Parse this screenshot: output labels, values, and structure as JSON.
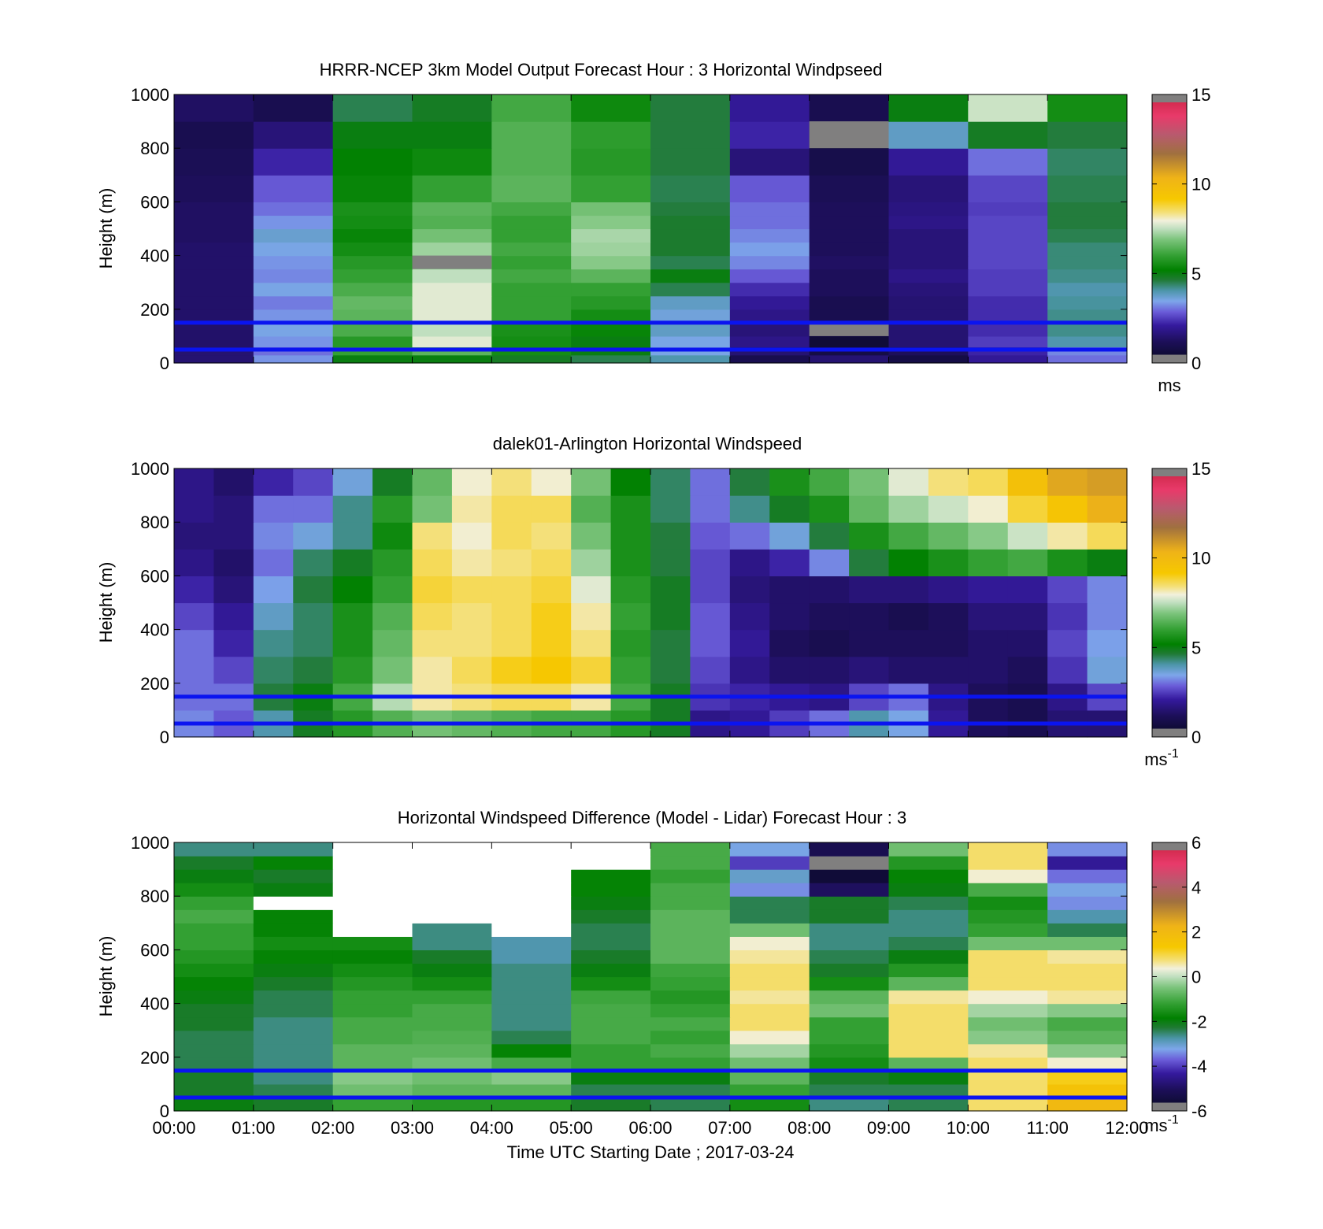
{
  "figure": {
    "x_tick_labels": [
      "00:00",
      "01:00",
      "02:00",
      "03:00",
      "04:00",
      "05:00",
      "06:00",
      "07:00",
      "08:00",
      "09:00",
      "10:00",
      "11:00",
      "12:00"
    ],
    "x_label": "Time UTC  Starting Date ; 2017-03-24",
    "reference_line_color": "#0a14f0",
    "reference_lines_m": [
      150,
      50
    ]
  },
  "chart_data": [
    {
      "type": "heatmap",
      "title": "HRRR-NCEP 3km Model Output   Forecast Hour : 3 Horizontal Windpseed",
      "ylabel": "Height (m)",
      "ylim": [
        0,
        1000
      ],
      "y_ticks": [
        0,
        200,
        400,
        600,
        800,
        1000
      ],
      "x_range_hours": [
        0,
        12
      ],
      "colorbar": {
        "ticks": [
          0,
          5,
          10,
          15
        ],
        "unit": "ms",
        "unit_sup": "",
        "range": [
          0,
          15
        ]
      },
      "columns_hours": [
        0,
        1,
        2,
        3,
        4,
        5,
        6,
        7,
        8,
        9,
        10,
        11
      ],
      "rows_bottom_to_top_m": [
        0,
        30,
        60,
        100,
        150,
        200,
        250,
        300,
        350,
        400,
        450,
        500,
        550,
        600,
        700,
        800,
        900,
        1000
      ],
      "values": [
        [
          1.5,
          3.3,
          5.0,
          5.0,
          4.8,
          4.5,
          4.0,
          1.0,
          1.5,
          0.8,
          2.0,
          3.0
        ],
        [
          1.5,
          3.0,
          6.0,
          6.5,
          5.5,
          5.0,
          3.5,
          1.5,
          0.8,
          1.2,
          2.2,
          3.2
        ],
        [
          1.4,
          3.3,
          5.8,
          7.8,
          5.5,
          5.0,
          3.5,
          1.8,
          0.5,
          1.5,
          2.5,
          4.0
        ],
        [
          1.4,
          3.5,
          6.3,
          7.5,
          5.6,
          5.3,
          3.8,
          1.6,
          0.8,
          1.5,
          2.3,
          4.2
        ],
        [
          1.4,
          3.3,
          6.5,
          7.8,
          6.0,
          5.5,
          3.6,
          1.8,
          1.0,
          1.5,
          2.3,
          4.2
        ],
        [
          1.4,
          3.1,
          6.6,
          7.8,
          6.0,
          5.8,
          3.8,
          2.0,
          1.0,
          1.5,
          2.3,
          4.1
        ],
        [
          1.4,
          3.5,
          6.3,
          7.8,
          6.0,
          6.0,
          4.5,
          2.3,
          1.2,
          1.6,
          2.5,
          4.0
        ],
        [
          1.4,
          3.2,
          6.0,
          7.5,
          6.2,
          6.5,
          5.0,
          2.8,
          1.2,
          1.8,
          2.5,
          4.2
        ],
        [
          1.4,
          3.3,
          5.8,
          7.0,
          6.0,
          7.0,
          4.5,
          3.2,
          1.3,
          1.6,
          2.6,
          4.3
        ],
        [
          1.4,
          3.5,
          5.5,
          7.2,
          6.2,
          7.2,
          4.7,
          3.4,
          1.2,
          1.6,
          2.6,
          4.3
        ],
        [
          1.3,
          3.7,
          5.3,
          6.8,
          6.0,
          7.3,
          4.7,
          3.2,
          1.2,
          1.6,
          2.6,
          4.5
        ],
        [
          1.3,
          3.3,
          5.5,
          6.4,
          6.0,
          7.0,
          4.7,
          3.0,
          1.2,
          1.8,
          2.6,
          4.6
        ],
        [
          1.3,
          3.0,
          5.6,
          6.5,
          6.2,
          6.8,
          4.6,
          3.0,
          1.2,
          1.7,
          2.5,
          4.6
        ],
        [
          1.2,
          2.8,
          5.3,
          6.0,
          6.5,
          6.0,
          4.5,
          2.8,
          1.1,
          1.6,
          2.6,
          4.5
        ],
        [
          1.1,
          2.2,
          5.2,
          5.4,
          6.4,
          5.8,
          4.6,
          1.6,
          0.9,
          2.0,
          3.0,
          4.4
        ],
        [
          1.0,
          1.6,
          5.0,
          5.0,
          6.4,
          5.9,
          4.6,
          2.2,
          0.6,
          3.8,
          4.8,
          4.6
        ],
        [
          1.3,
          1.0,
          4.5,
          4.8,
          6.2,
          5.4,
          4.6,
          2.0,
          1.0,
          5.0,
          7.6,
          5.5
        ]
      ],
      "gray_cells": [
        [
          8,
          3
        ],
        [
          8,
          15
        ],
        [
          3,
          8
        ]
      ]
    },
    {
      "type": "heatmap",
      "title": "dalek01-Arlington  Horizontal Windspeed",
      "ylabel": "Height (m)",
      "ylim": [
        0,
        1000
      ],
      "y_ticks": [
        0,
        200,
        400,
        600,
        800,
        1000
      ],
      "x_range_hours": [
        0,
        12
      ],
      "colorbar": {
        "ticks": [
          0,
          5,
          10,
          15
        ],
        "unit": "ms",
        "unit_sup": "-1",
        "range": [
          0,
          15
        ]
      },
      "columns_hours": [
        0,
        0.5,
        1,
        1.5,
        2,
        2.5,
        3,
        3.5,
        4,
        4.5,
        5,
        5.5,
        6,
        6.5,
        7,
        7.5,
        8,
        8.5,
        9,
        9.5,
        10,
        10.5,
        11,
        11.5
      ],
      "rows_bottom_to_top_m": [
        0,
        100,
        200,
        300,
        400,
        500,
        600,
        700,
        800,
        900,
        1000
      ],
      "values": [
        [
          3.2,
          2.8,
          4.0,
          4.8,
          5.8,
          6.4,
          6.8,
          6.6,
          6.4,
          6.2,
          6.2,
          5.8,
          4.8,
          1.8,
          2.0,
          2.5,
          3.0,
          4.0,
          3.5,
          2.0,
          1.2,
          1.0,
          1.5,
          1.5
        ],
        [
          3.0,
          3.0,
          4.6,
          5.0,
          6.2,
          7.4,
          8.2,
          8.4,
          8.6,
          8.6,
          8.2,
          6.2,
          4.8,
          2.4,
          2.2,
          2.0,
          1.8,
          2.6,
          3.0,
          1.8,
          1.2,
          1.0,
          1.8,
          2.6
        ],
        [
          3.0,
          2.6,
          4.4,
          4.6,
          5.8,
          6.8,
          8.2,
          8.6,
          9.0,
          9.2,
          8.8,
          6.0,
          4.6,
          2.6,
          1.8,
          1.4,
          1.4,
          1.6,
          1.4,
          1.4,
          1.4,
          1.2,
          2.4,
          3.6
        ],
        [
          3.0,
          2.2,
          4.2,
          4.4,
          5.6,
          6.6,
          8.4,
          8.4,
          8.6,
          9.0,
          8.4,
          5.8,
          4.6,
          2.8,
          2.0,
          1.2,
          1.0,
          1.2,
          1.2,
          1.2,
          1.4,
          1.4,
          2.6,
          3.4
        ],
        [
          2.6,
          2.0,
          3.8,
          4.4,
          5.6,
          6.4,
          8.6,
          8.4,
          8.6,
          9.0,
          8.2,
          6.0,
          4.8,
          2.8,
          1.8,
          1.4,
          1.2,
          1.2,
          1.0,
          1.2,
          1.6,
          1.6,
          2.4,
          3.2
        ],
        [
          2.2,
          1.6,
          3.4,
          4.6,
          5.2,
          6.0,
          8.8,
          8.6,
          8.6,
          8.8,
          7.8,
          5.8,
          4.8,
          2.6,
          1.6,
          1.4,
          1.4,
          1.6,
          1.6,
          1.8,
          2.0,
          2.0,
          2.6,
          3.2
        ],
        [
          1.8,
          1.4,
          3.0,
          4.4,
          4.8,
          5.8,
          8.6,
          8.2,
          8.4,
          8.6,
          7.2,
          5.6,
          4.6,
          2.6,
          1.8,
          2.2,
          3.2,
          4.6,
          5.2,
          5.6,
          6.0,
          6.2,
          5.6,
          5.0
        ],
        [
          1.6,
          1.6,
          3.2,
          3.6,
          4.2,
          5.4,
          8.4,
          8.0,
          8.6,
          8.4,
          6.8,
          5.6,
          4.6,
          2.8,
          3.0,
          3.6,
          4.6,
          5.6,
          6.2,
          6.6,
          7.0,
          7.6,
          8.2,
          8.6
        ],
        [
          1.8,
          1.6,
          3.0,
          3.0,
          4.2,
          5.8,
          6.8,
          8.2,
          8.6,
          8.6,
          6.4,
          5.6,
          4.4,
          3.0,
          4.2,
          4.8,
          5.6,
          6.6,
          7.2,
          7.6,
          8.0,
          8.8,
          9.4,
          10.4
        ],
        [
          1.8,
          1.4,
          2.2,
          2.6,
          3.6,
          4.8,
          6.6,
          8.0,
          8.4,
          8.0,
          6.8,
          5.2,
          4.4,
          3.0,
          4.6,
          5.6,
          6.2,
          6.8,
          7.8,
          8.4,
          8.6,
          9.6,
          10.6,
          10.8
        ]
      ]
    },
    {
      "type": "heatmap",
      "title": "Horizontal Windspeed Difference (Model - Lidar) Forecast Hour : 3",
      "ylabel": "Height (m)",
      "ylim": [
        0,
        1000
      ],
      "y_ticks": [
        0,
        200,
        400,
        600,
        800,
        1000
      ],
      "x_range_hours": [
        0,
        12
      ],
      "colorbar": {
        "ticks": [
          -6,
          -4,
          -2,
          0,
          2,
          4,
          6
        ],
        "unit": "ms",
        "unit_sup": "-1",
        "range": [
          -6,
          6
        ]
      },
      "columns_hours": [
        0,
        1,
        2,
        3,
        4,
        5,
        6,
        7,
        8,
        9,
        10,
        11
      ],
      "rows_bottom_to_top_m": [
        0,
        50,
        100,
        150,
        200,
        250,
        300,
        350,
        400,
        450,
        500,
        550,
        600,
        650,
        700,
        750,
        800,
        850,
        900,
        950,
        1000
      ],
      "values": [
        [
          -2.0,
          -2.2,
          -1.2,
          -1.4,
          -1.4,
          -2.2,
          -2.4,
          -1.6,
          -2.6,
          -2.4,
          0.8,
          2.0
        ],
        [
          -2.2,
          -2.4,
          -0.6,
          -0.8,
          -0.8,
          -2.4,
          -2.4,
          -1.2,
          -2.4,
          -2.4,
          0.8,
          1.6
        ],
        [
          -2.2,
          -2.6,
          -0.4,
          -0.6,
          -0.4,
          -2.0,
          -2.0,
          -0.8,
          -2.2,
          -2.0,
          0.8,
          1.2
        ],
        [
          -2.4,
          -2.6,
          -0.8,
          -0.6,
          -1.0,
          -1.2,
          -1.2,
          -0.6,
          -1.6,
          -0.8,
          0.8,
          0.4
        ],
        [
          -2.4,
          -2.6,
          -0.8,
          -0.8,
          -1.8,
          -1.2,
          -1.0,
          -0.2,
          -1.4,
          0.8,
          0.6,
          -0.4
        ],
        [
          -2.4,
          -2.6,
          -1.0,
          -0.9,
          -2.4,
          -1.0,
          -1.2,
          0.4,
          -1.2,
          0.8,
          -0.4,
          -0.8
        ],
        [
          -2.2,
          -2.6,
          -1.0,
          -1.0,
          -2.6,
          -1.0,
          -1.0,
          0.8,
          -1.2,
          0.8,
          -0.6,
          -1.0
        ],
        [
          -2.2,
          -2.4,
          -1.2,
          -1.0,
          -2.6,
          -1.0,
          -1.2,
          0.8,
          -0.6,
          0.8,
          -0.2,
          -0.4
        ],
        [
          -2.0,
          -2.4,
          -1.2,
          -1.2,
          -2.6,
          -1.1,
          -1.4,
          0.6,
          -0.8,
          0.6,
          0.4,
          0.6
        ],
        [
          -1.8,
          -2.2,
          -1.4,
          -1.6,
          -2.6,
          -1.6,
          -1.2,
          0.8,
          -1.6,
          -0.8,
          0.8,
          0.8
        ],
        [
          -1.6,
          -2.0,
          -1.6,
          -2.0,
          -2.6,
          -2.0,
          -1.1,
          0.8,
          -2.2,
          -1.4,
          0.8,
          0.8
        ],
        [
          -1.4,
          -1.8,
          -1.8,
          -2.2,
          -2.8,
          -2.2,
          -0.8,
          0.6,
          -2.4,
          -2.0,
          0.8,
          0.6
        ],
        [
          -1.2,
          -1.6,
          -1.6,
          -2.6,
          -2.8,
          -2.4,
          -0.8,
          0.4,
          -2.6,
          -2.4,
          -0.6,
          -0.6
        ],
        [
          -1.2,
          -1.8,
          null,
          -2.6,
          null,
          -2.4,
          -0.8,
          -0.6,
          -2.6,
          -2.6,
          -1.2,
          -2.4
        ],
        [
          -1.0,
          -1.8,
          null,
          null,
          null,
          -2.2,
          -0.8,
          -2.4,
          -2.2,
          -2.6,
          -1.4,
          -2.8
        ],
        [
          -1.2,
          null,
          null,
          null,
          null,
          -2.0,
          -1.0,
          -2.4,
          -2.2,
          -2.4,
          -1.6,
          -3.4
        ],
        [
          -1.6,
          -2.0,
          null,
          null,
          null,
          -1.8,
          -1.0,
          -3.4,
          -5.0,
          -2.0,
          -1.0,
          -3.2
        ],
        [
          -2.0,
          -2.2,
          null,
          null,
          null,
          -1.8,
          -1.2,
          -3.0,
          -5.6,
          -1.8,
          0.4,
          -3.6
        ],
        [
          -2.2,
          -1.8,
          null,
          null,
          null,
          null,
          -1.0,
          -4.0,
          -5.8,
          -1.4,
          0.8,
          -4.4
        ],
        [
          -2.6,
          -2.6,
          null,
          null,
          null,
          null,
          -1.0,
          -3.2,
          -5.2,
          -0.6,
          0.8,
          -3.4
        ]
      ]
    }
  ]
}
